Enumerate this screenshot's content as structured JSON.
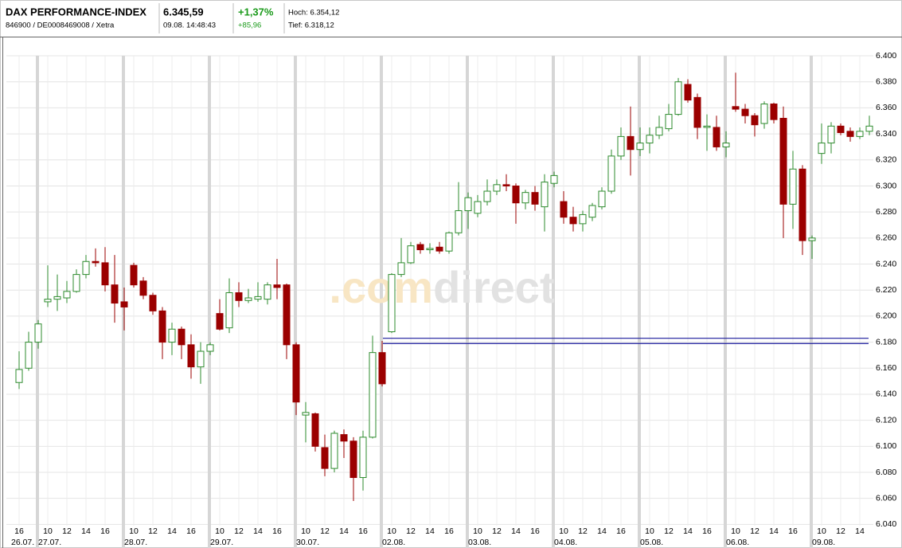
{
  "header": {
    "title": "DAX PERFORMANCE-INDEX",
    "subtitle": "846900 / DE0008469008 / Xetra",
    "price": "6.345,59",
    "time": "09.08. 14:48:43",
    "change_pct": "+1,37%",
    "change_abs": "+85,96",
    "high": "Hoch: 6.354,12",
    "low": "Tief: 6.318,12"
  },
  "chart_data": {
    "type": "candlestick",
    "up_color": "#2e8b2e",
    "down_color": "#9b0000",
    "watermark": [
      ".com",
      "direct"
    ],
    "ylim": [
      6039,
      6413.5
    ],
    "yticks": [
      {
        "value": 6040,
        "label": "6.040"
      },
      {
        "value": 6060,
        "label": "6.060"
      },
      {
        "value": 6080,
        "label": "6.080"
      },
      {
        "value": 6100,
        "label": "6.100"
      },
      {
        "value": 6120,
        "label": "6.120"
      },
      {
        "value": 6140,
        "label": "6.140"
      },
      {
        "value": 6160,
        "label": "6.160"
      },
      {
        "value": 6180,
        "label": "6.180"
      },
      {
        "value": 6200,
        "label": "6.200"
      },
      {
        "value": 6220,
        "label": "6.220"
      },
      {
        "value": 6240,
        "label": "6.240"
      },
      {
        "value": 6260,
        "label": "6.260"
      },
      {
        "value": 6280,
        "label": "6.280"
      },
      {
        "value": 6300,
        "label": "6.300"
      },
      {
        "value": 6320,
        "label": "6.320"
      },
      {
        "value": 6340,
        "label": "6.340"
      },
      {
        "value": 6360,
        "label": "6.360"
      },
      {
        "value": 6380,
        "label": "6.380"
      },
      {
        "value": 6400,
        "label": "6.400"
      }
    ],
    "grid": true,
    "reference_lines": [
      {
        "value": 6183,
        "color": "#1a1a9c"
      },
      {
        "value": 6179,
        "color": "#1a1a9c"
      }
    ],
    "days": [
      {
        "date": "26.07.",
        "hour_ticks": [
          16
        ],
        "candles": [
          {
            "x": 16,
            "o": 6149,
            "h": 6173,
            "l": 6144,
            "c": 6159
          },
          {
            "x": 17,
            "o": 6160,
            "h": 6188,
            "l": 6158,
            "c": 6180
          }
        ]
      },
      {
        "date": "27.07.",
        "hour_ticks": [
          10,
          12,
          14,
          16
        ],
        "candles": [
          {
            "x": 9,
            "o": 6180,
            "h": 6197,
            "l": 6175,
            "c": 6194
          },
          {
            "x": 10,
            "o": 6211,
            "h": 6239,
            "l": 6207,
            "c": 6213
          },
          {
            "x": 11,
            "o": 6213,
            "h": 6232,
            "l": 6204,
            "c": 6215
          },
          {
            "x": 12,
            "o": 6214,
            "h": 6227,
            "l": 6210,
            "c": 6219
          },
          {
            "x": 13,
            "o": 6219,
            "h": 6236,
            "l": 6218,
            "c": 6232
          },
          {
            "x": 14,
            "o": 6232,
            "h": 6247,
            "l": 6229,
            "c": 6242
          },
          {
            "x": 15,
            "o": 6242,
            "h": 6252,
            "l": 6238,
            "c": 6241
          },
          {
            "x": 16,
            "o": 6241,
            "h": 6253,
            "l": 6219,
            "c": 6224
          },
          {
            "x": 17,
            "o": 6224,
            "h": 6247,
            "l": 6195,
            "c": 6210
          }
        ]
      },
      {
        "date": "28.07.",
        "hour_ticks": [
          10,
          12,
          14,
          16
        ],
        "candles": [
          {
            "x": 9,
            "o": 6211,
            "h": 6222,
            "l": 6189,
            "c": 6207
          },
          {
            "x": 10,
            "o": 6239,
            "h": 6241,
            "l": 6222,
            "c": 6224
          },
          {
            "x": 11,
            "o": 6227,
            "h": 6230,
            "l": 6213,
            "c": 6216
          },
          {
            "x": 12,
            "o": 6216,
            "h": 6218,
            "l": 6201,
            "c": 6204
          },
          {
            "x": 13,
            "o": 6204,
            "h": 6207,
            "l": 6167,
            "c": 6180
          },
          {
            "x": 14,
            "o": 6180,
            "h": 6195,
            "l": 6170,
            "c": 6190
          },
          {
            "x": 15,
            "o": 6190,
            "h": 6192,
            "l": 6167,
            "c": 6178
          },
          {
            "x": 16,
            "o": 6178,
            "h": 6186,
            "l": 6152,
            "c": 6161
          },
          {
            "x": 17,
            "o": 6161,
            "h": 6180,
            "l": 6148,
            "c": 6173
          }
        ]
      },
      {
        "date": "29.07.",
        "hour_ticks": [
          10,
          12,
          14,
          16
        ],
        "candles": [
          {
            "x": 9,
            "o": 6173,
            "h": 6180,
            "l": 6170,
            "c": 6178
          },
          {
            "x": 10,
            "o": 6202,
            "h": 6213,
            "l": 6189,
            "c": 6190
          },
          {
            "x": 11,
            "o": 6191,
            "h": 6229,
            "l": 6187,
            "c": 6218
          },
          {
            "x": 12,
            "o": 6218,
            "h": 6226,
            "l": 6207,
            "c": 6212
          },
          {
            "x": 13,
            "o": 6212,
            "h": 6221,
            "l": 6210,
            "c": 6214
          },
          {
            "x": 14,
            "o": 6213,
            "h": 6226,
            "l": 6211,
            "c": 6215
          },
          {
            "x": 15,
            "o": 6213,
            "h": 6226,
            "l": 6209,
            "c": 6224
          },
          {
            "x": 16,
            "o": 6224,
            "h": 6244,
            "l": 6213,
            "c": 6222
          },
          {
            "x": 17,
            "o": 6224,
            "h": 6225,
            "l": 6167,
            "c": 6178
          }
        ]
      },
      {
        "date": "30.07.",
        "hour_ticks": [
          10,
          12,
          14,
          16
        ],
        "candles": [
          {
            "x": 9,
            "o": 6178,
            "h": 6180,
            "l": 6124,
            "c": 6134
          },
          {
            "x": 10,
            "o": 6124,
            "h": 6134,
            "l": 6103,
            "c": 6126
          },
          {
            "x": 11,
            "o": 6125,
            "h": 6126,
            "l": 6096,
            "c": 6100
          },
          {
            "x": 12,
            "o": 6099,
            "h": 6109,
            "l": 6077,
            "c": 6083
          },
          {
            "x": 13,
            "o": 6083,
            "h": 6112,
            "l": 6080,
            "c": 6110
          },
          {
            "x": 14,
            "o": 6109,
            "h": 6113,
            "l": 6091,
            "c": 6104
          },
          {
            "x": 15,
            "o": 6104,
            "h": 6107,
            "l": 6058,
            "c": 6076
          },
          {
            "x": 16,
            "o": 6076,
            "h": 6112,
            "l": 6066,
            "c": 6107
          },
          {
            "x": 17,
            "o": 6107,
            "h": 6185,
            "l": 6106,
            "c": 6172
          }
        ]
      },
      {
        "date": "02.08.",
        "hour_ticks": [
          10,
          12,
          14,
          16
        ],
        "candles": [
          {
            "x": 9,
            "o": 6172,
            "h": 6181,
            "l": 6146,
            "c": 6148
          },
          {
            "x": 10,
            "o": 6188,
            "h": 6233,
            "l": 6187,
            "c": 6232
          },
          {
            "x": 11,
            "o": 6232,
            "h": 6260,
            "l": 6230,
            "c": 6241
          },
          {
            "x": 12,
            "o": 6241,
            "h": 6257,
            "l": 6240,
            "c": 6254
          },
          {
            "x": 13,
            "o": 6255,
            "h": 6257,
            "l": 6248,
            "c": 6251
          },
          {
            "x": 14,
            "o": 6251,
            "h": 6256,
            "l": 6248,
            "c": 6252
          },
          {
            "x": 15,
            "o": 6253,
            "h": 6257,
            "l": 6248,
            "c": 6250
          },
          {
            "x": 16,
            "o": 6250,
            "h": 6265,
            "l": 6248,
            "c": 6264
          },
          {
            "x": 17,
            "o": 6264,
            "h": 6303,
            "l": 6262,
            "c": 6281
          }
        ]
      },
      {
        "date": "03.08.",
        "hour_ticks": [
          10,
          12,
          14,
          16
        ],
        "candles": [
          {
            "x": 9,
            "o": 6281,
            "h": 6295,
            "l": 6267,
            "c": 6291
          },
          {
            "x": 10,
            "o": 6279,
            "h": 6293,
            "l": 6276,
            "c": 6288
          },
          {
            "x": 11,
            "o": 6288,
            "h": 6305,
            "l": 6285,
            "c": 6296
          },
          {
            "x": 12,
            "o": 6296,
            "h": 6305,
            "l": 6293,
            "c": 6301
          },
          {
            "x": 13,
            "o": 6301,
            "h": 6309,
            "l": 6296,
            "c": 6300
          },
          {
            "x": 14,
            "o": 6300,
            "h": 6302,
            "l": 6271,
            "c": 6287
          },
          {
            "x": 15,
            "o": 6287,
            "h": 6297,
            "l": 6282,
            "c": 6295
          },
          {
            "x": 16,
            "o": 6295,
            "h": 6300,
            "l": 6281,
            "c": 6286
          },
          {
            "x": 17,
            "o": 6284,
            "h": 6309,
            "l": 6265,
            "c": 6303
          }
        ]
      },
      {
        "date": "04.08.",
        "hour_ticks": [
          10,
          12,
          14,
          16
        ],
        "candles": [
          {
            "x": 9,
            "o": 6302,
            "h": 6311,
            "l": 6299,
            "c": 6308
          },
          {
            "x": 10,
            "o": 6288,
            "h": 6296,
            "l": 6271,
            "c": 6276
          },
          {
            "x": 11,
            "o": 6276,
            "h": 6284,
            "l": 6265,
            "c": 6271
          },
          {
            "x": 12,
            "o": 6271,
            "h": 6281,
            "l": 6265,
            "c": 6278
          },
          {
            "x": 13,
            "o": 6276,
            "h": 6287,
            "l": 6273,
            "c": 6285
          },
          {
            "x": 14,
            "o": 6284,
            "h": 6299,
            "l": 6282,
            "c": 6296
          },
          {
            "x": 15,
            "o": 6296,
            "h": 6328,
            "l": 6294,
            "c": 6323
          },
          {
            "x": 16,
            "o": 6323,
            "h": 6345,
            "l": 6320,
            "c": 6338
          },
          {
            "x": 17,
            "o": 6338,
            "h": 6361,
            "l": 6308,
            "c": 6328
          }
        ]
      },
      {
        "date": "05.08.",
        "hour_ticks": [
          10,
          12,
          14,
          16
        ],
        "candles": [
          {
            "x": 9,
            "o": 6328,
            "h": 6345,
            "l": 6323,
            "c": 6333
          },
          {
            "x": 10,
            "o": 6333,
            "h": 6345,
            "l": 6325,
            "c": 6339
          },
          {
            "x": 11,
            "o": 6339,
            "h": 6354,
            "l": 6336,
            "c": 6345
          },
          {
            "x": 12,
            "o": 6344,
            "h": 6363,
            "l": 6342,
            "c": 6355
          },
          {
            "x": 13,
            "o": 6355,
            "h": 6383,
            "l": 6354,
            "c": 6380
          },
          {
            "x": 14,
            "o": 6378,
            "h": 6382,
            "l": 6364,
            "c": 6366
          },
          {
            "x": 15,
            "o": 6368,
            "h": 6371,
            "l": 6336,
            "c": 6345
          },
          {
            "x": 16,
            "o": 6345,
            "h": 6355,
            "l": 6327,
            "c": 6346
          },
          {
            "x": 17,
            "o": 6345,
            "h": 6354,
            "l": 6327,
            "c": 6330
          }
        ]
      },
      {
        "date": "06.08.",
        "hour_ticks": [
          10,
          12,
          14,
          16
        ],
        "candles": [
          {
            "x": 9,
            "o": 6330,
            "h": 6342,
            "l": 6322,
            "c": 6333
          },
          {
            "x": 10,
            "o": 6361,
            "h": 6387,
            "l": 6357,
            "c": 6359
          },
          {
            "x": 11,
            "o": 6359,
            "h": 6363,
            "l": 6348,
            "c": 6354
          },
          {
            "x": 12,
            "o": 6354,
            "h": 6356,
            "l": 6338,
            "c": 6347
          },
          {
            "x": 13,
            "o": 6348,
            "h": 6365,
            "l": 6344,
            "c": 6363
          },
          {
            "x": 14,
            "o": 6363,
            "h": 6364,
            "l": 6348,
            "c": 6351
          },
          {
            "x": 15,
            "o": 6352,
            "h": 6361,
            "l": 6260,
            "c": 6286
          },
          {
            "x": 16,
            "o": 6286,
            "h": 6327,
            "l": 6267,
            "c": 6313
          },
          {
            "x": 17,
            "o": 6313,
            "h": 6316,
            "l": 6247,
            "c": 6258
          }
        ]
      },
      {
        "date": "09.08.",
        "hour_ticks": [
          10,
          12,
          14
        ],
        "candles": [
          {
            "x": 9,
            "o": 6258,
            "h": 6262,
            "l": 6244,
            "c": 6260
          },
          {
            "x": 10,
            "o": 6325,
            "h": 6348,
            "l": 6317,
            "c": 6333
          },
          {
            "x": 11,
            "o": 6333,
            "h": 6349,
            "l": 6325,
            "c": 6346
          },
          {
            "x": 12,
            "o": 6346,
            "h": 6348,
            "l": 6339,
            "c": 6341
          },
          {
            "x": 13,
            "o": 6342,
            "h": 6345,
            "l": 6334,
            "c": 6338
          },
          {
            "x": 14,
            "o": 6338,
            "h": 6345,
            "l": 6336,
            "c": 6342
          },
          {
            "x": 15,
            "o": 6342,
            "h": 6354,
            "l": 6339,
            "c": 6346
          }
        ]
      }
    ]
  }
}
